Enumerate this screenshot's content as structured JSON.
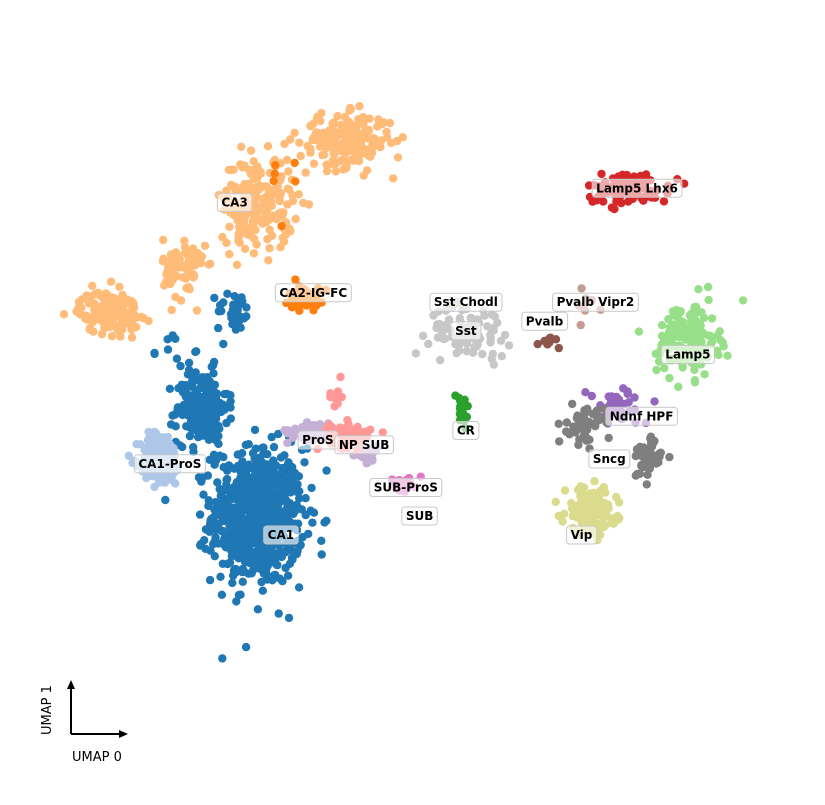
{
  "chart_data": {
    "type": "scatter",
    "title": "",
    "xlabel": "UMAP 0",
    "ylabel": "UMAP 1",
    "xlim": [
      -8,
      8
    ],
    "ylim": [
      -7,
      7
    ],
    "grid": false,
    "legend": "on data",
    "clusters": [
      {
        "name": "CA1",
        "color": "#1f77b4",
        "blobs": [
          [
            -3.4,
            -2.6,
            0.9,
            1.3,
            700
          ],
          [
            -4.6,
            -0.3,
            0.5,
            0.7,
            220
          ],
          [
            -3.9,
            1.7,
            0.35,
            0.4,
            35
          ],
          [
            -5.3,
            0.9,
            0.45,
            0.35,
            10
          ]
        ]
      },
      {
        "name": "CA1-ProS",
        "color": "#aec7e8",
        "blobs": [
          [
            -5.5,
            -1.4,
            0.4,
            0.5,
            160
          ]
        ]
      },
      {
        "name": "ProS",
        "color": "#c5b0d5",
        "blobs": [
          [
            -2.2,
            -0.8,
            0.5,
            0.2,
            50
          ]
        ]
      },
      {
        "name": "SUB-ProS",
        "color": "#c5b0d5",
        "blobs": [
          [
            -1.1,
            -1.3,
            0.35,
            0.15,
            25
          ]
        ]
      },
      {
        "name": "SUB",
        "color": "#e377c2",
        "blobs": [
          [
            -0.2,
            -1.9,
            0.3,
            0.15,
            25
          ]
        ]
      },
      {
        "name": "NP SUB",
        "color": "#ff9896",
        "blobs": [
          [
            -1.4,
            -0.9,
            0.4,
            0.25,
            60
          ],
          [
            -1.7,
            -0.1,
            0.15,
            0.3,
            8
          ]
        ]
      },
      {
        "name": "CA3",
        "color": "#ffbb78",
        "blobs": [
          [
            -1.5,
            5.3,
            0.9,
            0.5,
            200
          ],
          [
            -3.4,
            4.0,
            0.7,
            0.9,
            200
          ],
          [
            -6.6,
            1.7,
            0.6,
            0.4,
            150
          ],
          [
            -5.0,
            2.6,
            0.4,
            0.6,
            80
          ]
        ]
      },
      {
        "name": "CA2-IG-FC",
        "color": "#ff7f0e",
        "blobs": [
          [
            -2.4,
            2.0,
            0.3,
            0.25,
            60
          ],
          [
            -2.9,
            4.3,
            0.35,
            0.5,
            6
          ]
        ]
      },
      {
        "name": "Lamp5 Lhx6",
        "color": "#d62728",
        "blobs": [
          [
            4.6,
            4.3,
            0.8,
            0.3,
            120
          ]
        ]
      },
      {
        "name": "Pvalb Vipr2",
        "color": "#c49c94",
        "blobs": [
          [
            3.7,
            1.8,
            0.4,
            0.3,
            10
          ]
        ]
      },
      {
        "name": "Sst Chodl",
        "color": "#bcbd22",
        "blobs": [
          [
            0.9,
            1.9,
            0.05,
            0.05,
            2
          ]
        ]
      },
      {
        "name": "Sst",
        "color": "#c7c7c7",
        "blobs": [
          [
            1.2,
            1.3,
            0.8,
            0.5,
            80
          ]
        ]
      },
      {
        "name": "Pvalb",
        "color": "#8c564b",
        "blobs": [
          [
            2.9,
            1.1,
            0.4,
            0.15,
            10
          ]
        ]
      },
      {
        "name": "Lamp5",
        "color": "#98df8a",
        "blobs": [
          [
            5.9,
            1.1,
            0.6,
            0.7,
            150
          ]
        ]
      },
      {
        "name": "CR",
        "color": "#2ca02c",
        "blobs": [
          [
            1.0,
            -0.4,
            0.15,
            0.4,
            25
          ]
        ]
      },
      {
        "name": "Ndnf HPF",
        "color": "#9467bd",
        "blobs": [
          [
            4.4,
            -0.3,
            0.6,
            0.35,
            40
          ]
        ]
      },
      {
        "name": "Sncg",
        "color": "#7f7f7f",
        "blobs": [
          [
            3.7,
            -0.7,
            0.35,
            0.35,
            50
          ],
          [
            5.0,
            -1.4,
            0.3,
            0.4,
            50
          ]
        ]
      },
      {
        "name": "Vip",
        "color": "#dbdb8d",
        "blobs": [
          [
            3.8,
            -2.5,
            0.5,
            0.45,
            160
          ]
        ]
      }
    ],
    "labels": [
      {
        "text": "CA3",
        "x": -3.9,
        "y": 4.0
      },
      {
        "text": "CA2-IG-FC",
        "x": -2.2,
        "y": 2.1
      },
      {
        "text": "Lamp5 Lhx6",
        "x": 4.8,
        "y": 4.3
      },
      {
        "text": "Sst Chodl",
        "x": 1.1,
        "y": 1.9
      },
      {
        "text": "Pvalb Vipr2",
        "x": 3.9,
        "y": 1.9
      },
      {
        "text": "Sst",
        "x": 1.1,
        "y": 1.3
      },
      {
        "text": "Pvalb",
        "x": 2.8,
        "y": 1.5
      },
      {
        "text": "Lamp5",
        "x": 5.9,
        "y": 0.8
      },
      {
        "text": "Ndnf HPF",
        "x": 4.9,
        "y": -0.5
      },
      {
        "text": "CR",
        "x": 1.1,
        "y": -0.8
      },
      {
        "text": "ProS",
        "x": -2.1,
        "y": -1.0
      },
      {
        "text": "NP SUB",
        "x": -1.1,
        "y": -1.1
      },
      {
        "text": "CA1-ProS",
        "x": -5.3,
        "y": -1.5
      },
      {
        "text": "SUB-ProS",
        "x": -0.2,
        "y": -2.0
      },
      {
        "text": "Sncg",
        "x": 4.2,
        "y": -1.4
      },
      {
        "text": "SUB",
        "x": 0.1,
        "y": -2.6
      },
      {
        "text": "CA1",
        "x": -2.9,
        "y": -3.0
      },
      {
        "text": "Vip",
        "x": 3.6,
        "y": -3.0
      }
    ]
  }
}
